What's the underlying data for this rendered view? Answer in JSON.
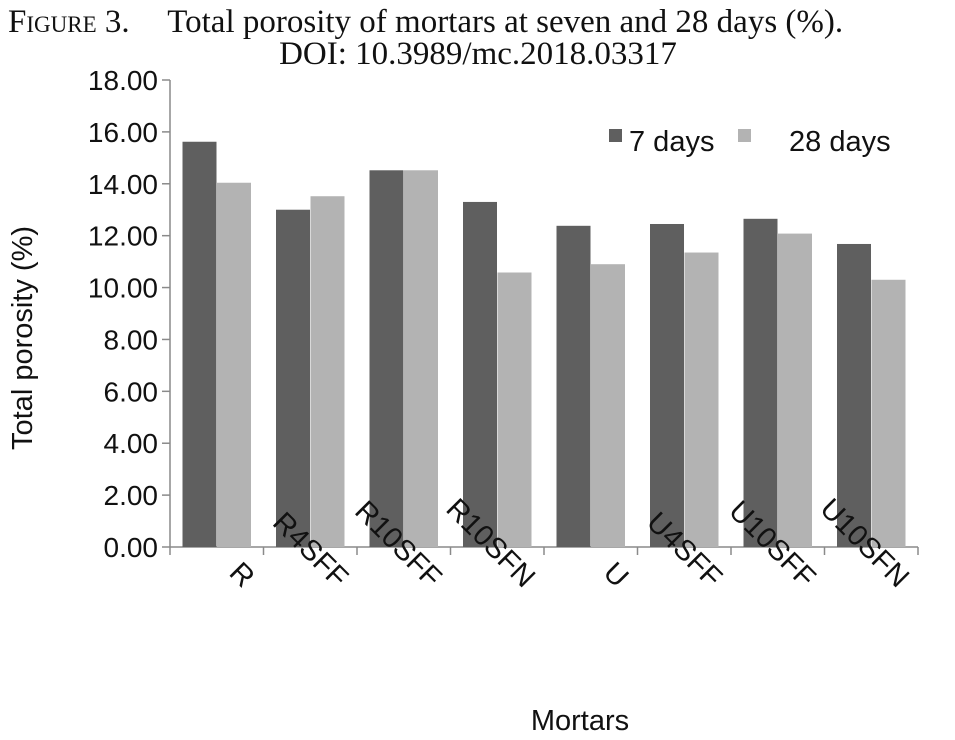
{
  "caption": {
    "label": "Figure 3.",
    "line1": "Total porosity of mortars at seven and 28 days (%).",
    "line2": "DOI: 10.3989/mc.2018.03317"
  },
  "chart_data": {
    "type": "bar",
    "title": "",
    "xlabel": "Mortars",
    "ylabel": "Total porosity (%)",
    "categories": [
      "R",
      "R4SFF",
      "R10SFF",
      "R10SFN",
      "U",
      "U4SFF",
      "U10SFF",
      "U10SFN"
    ],
    "series": [
      {
        "name": "7 days",
        "color": "#5f5f5f",
        "values": [
          15.62,
          13.0,
          14.52,
          13.3,
          12.38,
          12.45,
          12.65,
          11.68
        ]
      },
      {
        "name": "28 days",
        "color": "#b3b3b3",
        "values": [
          14.04,
          13.52,
          14.52,
          10.58,
          10.9,
          11.35,
          12.08,
          10.3
        ]
      }
    ],
    "ylim": [
      0,
      18
    ],
    "yticks": [
      "0.00",
      "2.00",
      "4.00",
      "6.00",
      "8.00",
      "10.00",
      "12.00",
      "14.00",
      "16.00",
      "18.00"
    ],
    "grid": false,
    "legend": "top-right"
  }
}
